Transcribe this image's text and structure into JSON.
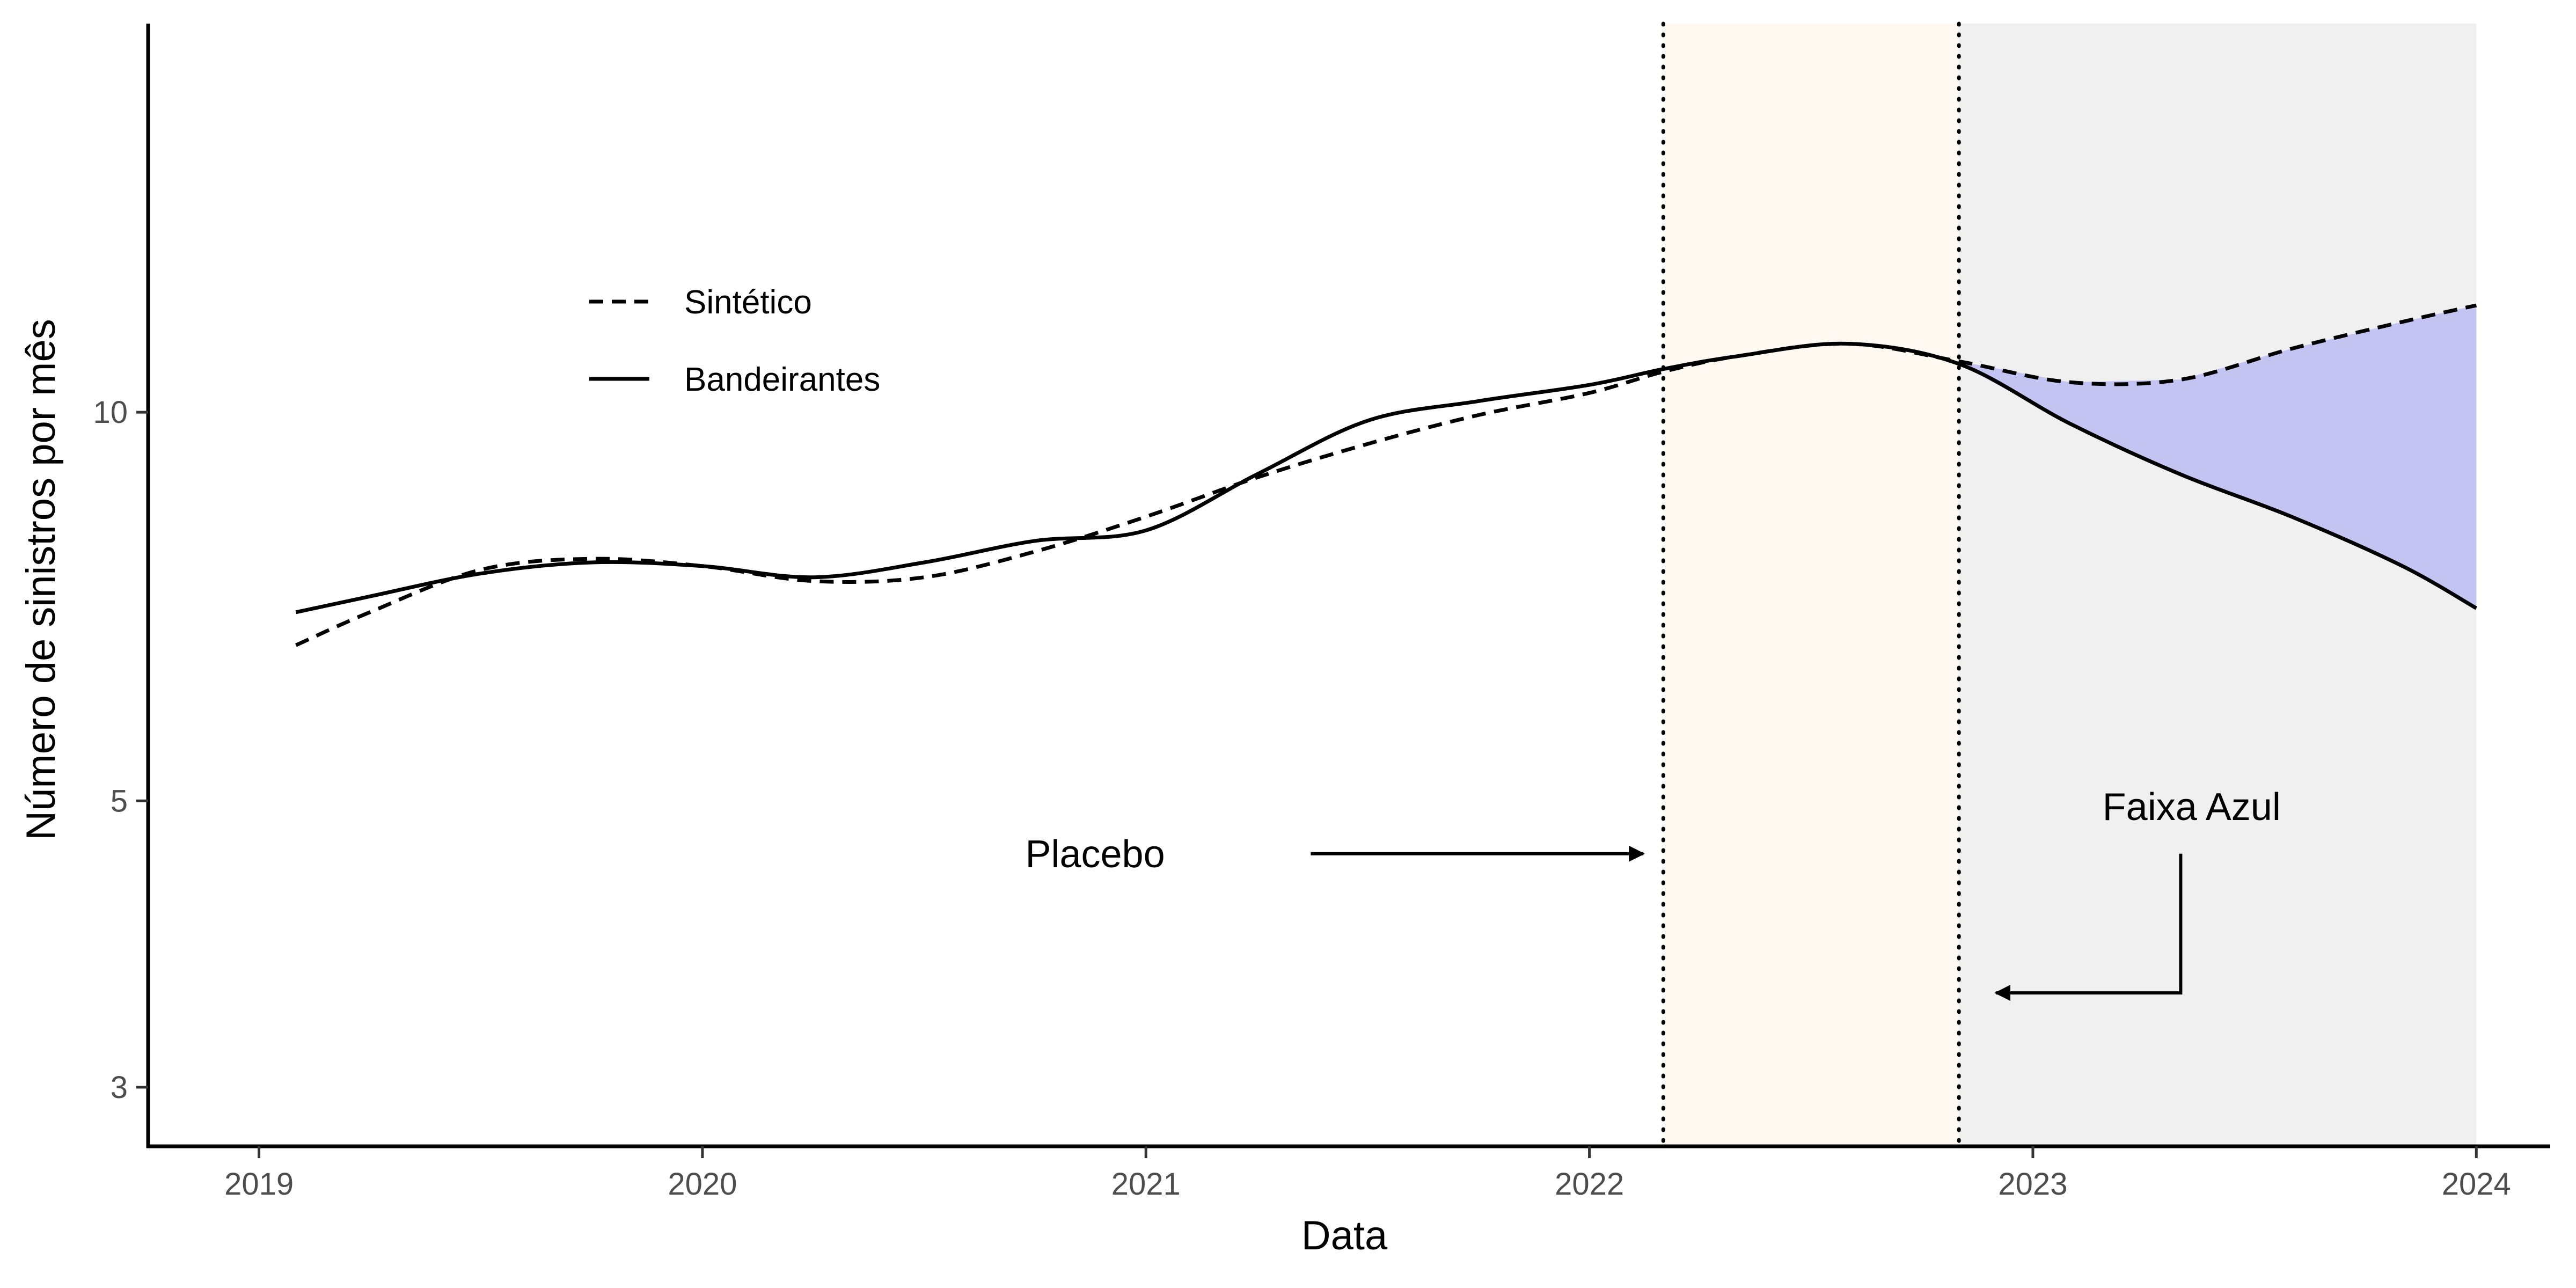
{
  "colors": {
    "placebo_band": "#fff9f2",
    "post_band": "#f0f0f0",
    "gap_fill": "#c4c4f2",
    "line": "#000000",
    "tick_text": "#4d4d4d"
  },
  "chart_data": {
    "type": "line",
    "title": "",
    "xlabel": "Data",
    "ylabel": "Número de sinistros por mês",
    "x_scale": "date",
    "y_scale": "log",
    "xlim": [
      "2018-10-01",
      "2024-03-01"
    ],
    "ylim": [
      2.7,
      20
    ],
    "x_ticks": [
      "2019-01-01",
      "2020-01-01",
      "2021-01-01",
      "2022-01-01",
      "2023-01-01",
      "2024-01-01"
    ],
    "x_tick_labels": [
      "2019",
      "2020",
      "2021",
      "2022",
      "2023",
      "2024"
    ],
    "y_ticks": [
      3,
      5,
      10
    ],
    "y_tick_labels": [
      "3",
      "5",
      "10"
    ],
    "grid": false,
    "legend_position": "top-left",
    "series": [
      {
        "name": "Sintético",
        "style": "dashed",
        "x": [
          "2019-02-01",
          "2019-04-01",
          "2019-07-01",
          "2019-10-01",
          "2020-01-01",
          "2020-04-01",
          "2020-07-01",
          "2020-10-01",
          "2021-01-01",
          "2021-04-01",
          "2021-07-01",
          "2021-10-01",
          "2022-01-01",
          "2022-03-01",
          "2022-05-01",
          "2022-08-01",
          "2022-11-01",
          "2023-02-01",
          "2023-05-01",
          "2023-08-01",
          "2023-11-01",
          "2024-01-01"
        ],
        "values": [
          6.6,
          7.0,
          7.55,
          7.7,
          7.6,
          7.4,
          7.45,
          7.8,
          8.3,
          8.9,
          9.45,
          9.95,
          10.35,
          10.75,
          11.05,
          11.3,
          10.95,
          10.55,
          10.6,
          11.2,
          11.75,
          12.1
        ]
      },
      {
        "name": "Bandeirantes",
        "style": "solid",
        "x": [
          "2019-02-01",
          "2019-04-01",
          "2019-07-01",
          "2019-10-01",
          "2020-01-01",
          "2020-04-01",
          "2020-07-01",
          "2020-10-01",
          "2021-01-01",
          "2021-04-01",
          "2021-07-01",
          "2021-10-01",
          "2022-01-01",
          "2022-03-01",
          "2022-05-01",
          "2022-08-01",
          "2022-11-01",
          "2023-02-01",
          "2023-05-01",
          "2023-08-01",
          "2023-11-01",
          "2024-01-01"
        ],
        "values": [
          7.0,
          7.2,
          7.5,
          7.65,
          7.6,
          7.45,
          7.65,
          7.95,
          8.1,
          8.95,
          9.85,
          10.2,
          10.5,
          10.8,
          11.05,
          11.3,
          10.9,
          9.8,
          8.95,
          8.3,
          7.6,
          7.05
        ]
      }
    ],
    "shaded_regions": [
      {
        "start": "2022-03-01",
        "end": "2022-11-01",
        "color": "#fff9f2"
      },
      {
        "start": "2022-11-01",
        "end": "2024-01-01",
        "color": "#f0f0f0"
      }
    ],
    "vertical_lines": [
      "2022-03-01",
      "2022-11-01"
    ],
    "gap_fill_range": [
      "2022-11-01",
      "2024-01-01"
    ],
    "annotations": [
      {
        "text": "Placebo",
        "label_x": "2020-11-20",
        "label_y": 4.55,
        "arrow_from": [
          "2021-05-15",
          4.55
        ],
        "arrow_to": [
          "2022-02-15",
          4.55
        ]
      },
      {
        "text": "Faixa Azul",
        "label_x": "2023-05-10",
        "label_y": 4.95,
        "arrow_path": [
          [
            "2023-05-01",
            4.55
          ],
          [
            "2023-05-01",
            3.55
          ],
          [
            "2022-12-01",
            3.55
          ]
        ]
      }
    ]
  }
}
